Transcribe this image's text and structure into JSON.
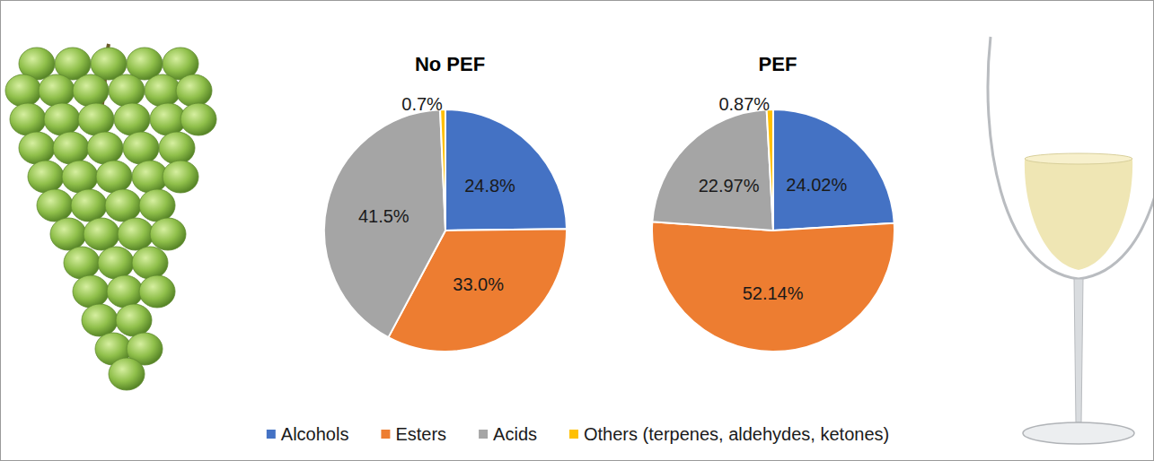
{
  "chart_data": [
    {
      "type": "pie",
      "title": "No PEF",
      "categories": [
        "Alcohols",
        "Esters",
        "Acids",
        "Others (terpenes, aldehydes, ketones)"
      ],
      "values": [
        24.8,
        33.0,
        41.5,
        0.7
      ],
      "value_labels": [
        "24.8%",
        "33.0%",
        "41.5%",
        "0.7%"
      ],
      "colors": [
        "#4472c4",
        "#ed7d31",
        "#a5a5a5",
        "#ffc000"
      ],
      "data_labels": true,
      "legend": "bottom"
    },
    {
      "type": "pie",
      "title": "PEF",
      "categories": [
        "Alcohols",
        "Esters",
        "Acids",
        "Others (terpenes, aldehydes, ketones)"
      ],
      "values": [
        24.02,
        52.14,
        22.97,
        0.87
      ],
      "value_labels": [
        "24.02%",
        "52.14%",
        "22.97%",
        "0.87%"
      ],
      "colors": [
        "#4472c4",
        "#ed7d31",
        "#a5a5a5",
        "#ffc000"
      ],
      "data_labels": true,
      "legend": "bottom"
    }
  ]
}
